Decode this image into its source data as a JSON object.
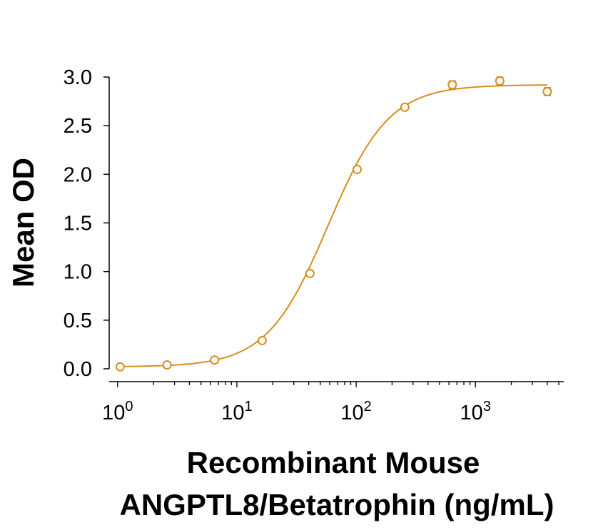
{
  "chart_data": {
    "type": "scatter",
    "title": "",
    "xlabel_lines": [
      "Recombinant Mouse",
      "ANGPTL8/Betatrophin (ng/mL)"
    ],
    "ylabel": "Mean OD",
    "x_scale": "log",
    "xlim": [
      0.85,
      5500
    ],
    "ylim": [
      -0.1,
      3.15
    ],
    "x_ticks": [
      {
        "value": 1,
        "base": "10",
        "exp": "0"
      },
      {
        "value": 10,
        "base": "10",
        "exp": "1"
      },
      {
        "value": 100,
        "base": "10",
        "exp": "2"
      },
      {
        "value": 1000,
        "base": "10",
        "exp": "3"
      }
    ],
    "y_ticks": [
      {
        "value": 0.0,
        "label": "0.0"
      },
      {
        "value": 0.5,
        "label": "0.5"
      },
      {
        "value": 1.0,
        "label": "1.0"
      },
      {
        "value": 1.5,
        "label": "1.5"
      },
      {
        "value": 2.0,
        "label": "2.0"
      },
      {
        "value": 2.5,
        "label": "2.5"
      },
      {
        "value": 3.0,
        "label": "3.0"
      }
    ],
    "grid": false,
    "legend": "none",
    "series": [
      {
        "color": "#d98c1b",
        "marker": "open-circle",
        "points": [
          {
            "x": 1.05,
            "y": 0.02,
            "err": 0.01
          },
          {
            "x": 2.6,
            "y": 0.04,
            "err": 0.01
          },
          {
            "x": 6.5,
            "y": 0.09,
            "err": 0.01
          },
          {
            "x": 16.3,
            "y": 0.29,
            "err": 0.02
          },
          {
            "x": 41,
            "y": 0.98,
            "err": 0.03
          },
          {
            "x": 102,
            "y": 2.05,
            "err": 0.02
          },
          {
            "x": 256,
            "y": 2.69,
            "err": 0.02
          },
          {
            "x": 640,
            "y": 2.92,
            "err": 0.04
          },
          {
            "x": 1600,
            "y": 2.96,
            "err": 0.04
          },
          {
            "x": 4000,
            "y": 2.85,
            "err": 0.04
          }
        ],
        "fit": {
          "model": "4PL",
          "bottom": 0.02,
          "top": 2.92,
          "ec50": 58,
          "hill": 1.7,
          "x_range": [
            1.05,
            4000
          ]
        }
      }
    ]
  }
}
